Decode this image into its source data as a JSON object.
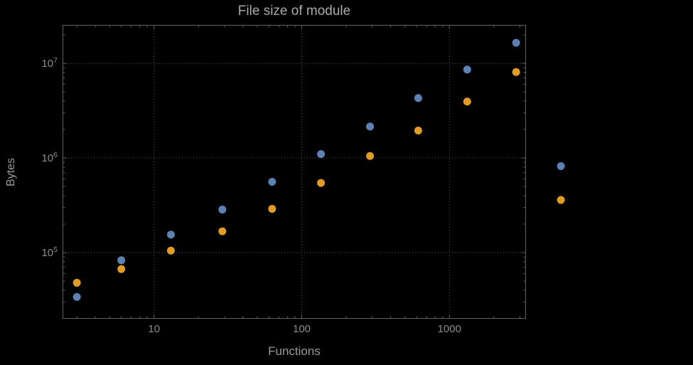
{
  "chart": {
    "title": "File size of module",
    "xlabel": "Functions",
    "ylabel": "Bytes"
  },
  "chart_data": {
    "type": "scatter",
    "title": "File size of module",
    "xlabel": "Functions",
    "ylabel": "Bytes",
    "x_scale": "log",
    "y_scale": "log",
    "x": [
      3,
      6,
      13,
      29,
      63,
      135,
      290,
      615,
      1320,
      2830,
      5690
    ],
    "series": [
      {
        "name": "blue",
        "color": "#5e81b5",
        "values": [
          34000,
          83000,
          155000,
          285000,
          560000,
          1100000,
          2150000,
          4300000,
          8600000,
          16500000,
          820000
        ]
      },
      {
        "name": "orange",
        "color": "#e19c24",
        "values": [
          48000,
          67000,
          105000,
          168000,
          290000,
          545000,
          1050000,
          1950000,
          3950000,
          8100000,
          360000
        ]
      }
    ],
    "xlim": [
      2.4,
      3300
    ],
    "ylim": [
      20000,
      25500000
    ],
    "x_major_ticks": [
      10,
      100,
      1000
    ],
    "x_tick_labels": [
      "10",
      "100",
      "1000"
    ],
    "y_major_ticks": [
      100000,
      1000000,
      10000000
    ],
    "y_tick_labels": [
      {
        "base": "10",
        "exp": "5"
      },
      {
        "base": "10",
        "exp": "6"
      },
      {
        "base": "10",
        "exp": "7"
      }
    ],
    "grid": true,
    "legend": "none",
    "background": "#000000",
    "frame_color": "#616161",
    "grid_color": "#555555",
    "tick_label_color": "#8c8c8c",
    "label_color": "#9b9b9b",
    "title_color": "#a9a9a9"
  }
}
